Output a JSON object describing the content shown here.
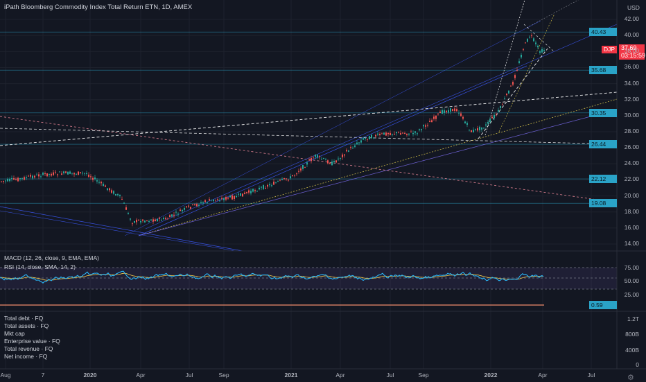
{
  "header": {
    "title": "iPath Bloomberg Commodity Index Total Return ETN, 1D, AMEX",
    "currency": "USD"
  },
  "price_axis": {
    "labels": [
      "42.00",
      "40.00",
      "38.00",
      "36.00",
      "34.00",
      "32.00",
      "30.00",
      "28.00",
      "26.00",
      "24.00",
      "22.00",
      "20.00",
      "18.00",
      "16.00",
      "14.00"
    ],
    "tags": [
      "40.43",
      "35.68",
      "30.35",
      "26.44",
      "22.12",
      "19.08"
    ],
    "current": {
      "symbol": "DJP",
      "price": "37.69",
      "countdown": "03:15:59"
    }
  },
  "indicators": {
    "macd_label": "MACD (12, 26, close, 9, EMA, EMA)",
    "rsi_label": "RSI (14, close, SMA, 14, 2)",
    "rsi_axis": [
      "75.00",
      "50.00",
      "25.00"
    ],
    "last_tag": "0.59"
  },
  "financials": {
    "items": [
      "Total debt · FQ",
      "Total assets · FQ",
      "Mkt cap",
      "Enterprise value · FQ",
      "Total revenue · FQ",
      "Net income · FQ"
    ],
    "axis": [
      "1.2T",
      "800B",
      "400B",
      "0"
    ]
  },
  "time_axis": [
    "Aug",
    "7",
    "2020",
    "Apr",
    "Jul",
    "Sep",
    "2021",
    "Apr",
    "Jul",
    "Sep",
    "2022",
    "Apr",
    "Jul"
  ],
  "colors": {
    "background": "#131722",
    "up": "#26a69a",
    "down": "#ef5350",
    "accent": "#2aa3c7",
    "rsi": "#29b6f6",
    "signal": "#f2c94c"
  }
}
